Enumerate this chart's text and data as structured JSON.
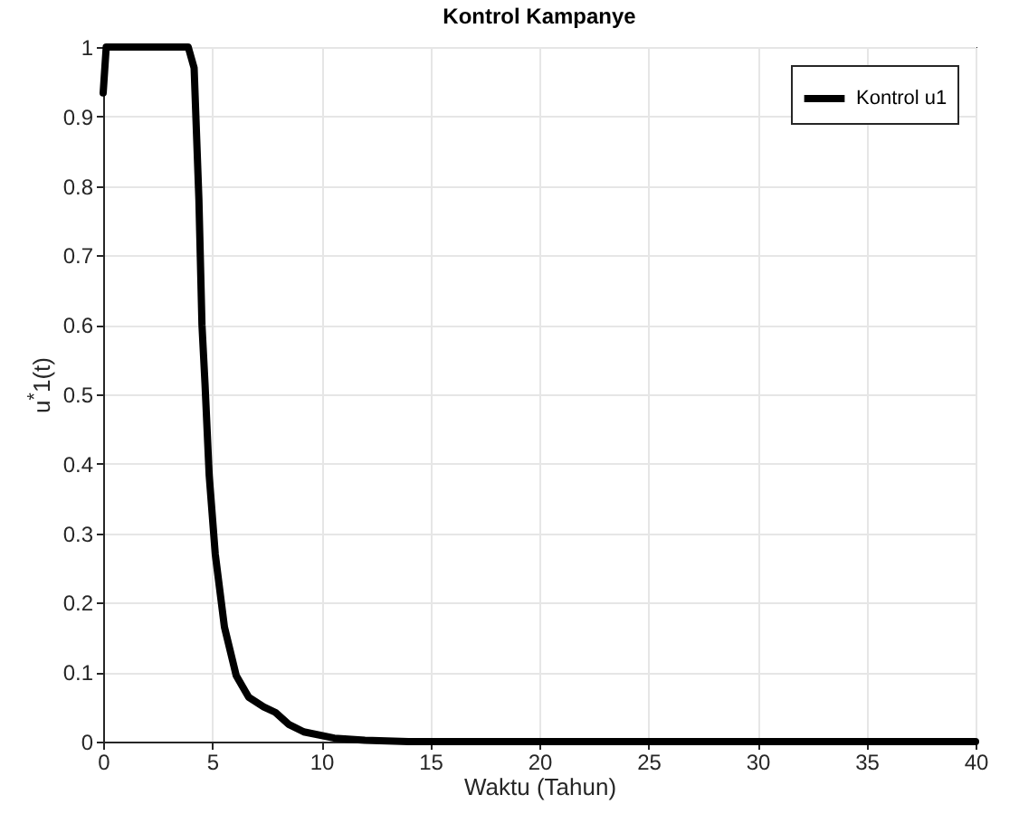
{
  "chart_data": {
    "type": "line",
    "title": "Kontrol Kampanye",
    "xlabel": "Waktu (Tahun)",
    "ylabel": "u$^{*}$1(t)",
    "xlim": [
      0,
      40
    ],
    "xticks": [
      0,
      5,
      10,
      15,
      20,
      25,
      30,
      35,
      40
    ],
    "ylim": [
      0,
      1
    ],
    "yticks": [
      0,
      0.1,
      0.2,
      0.3,
      0.4,
      0.5,
      0.6,
      0.7,
      0.8,
      0.9,
      1
    ],
    "grid": true,
    "legend": "top right",
    "line_style": "solid",
    "marker": "none",
    "series": [
      {
        "name": "Kontrol u1",
        "color": "#000000",
        "x": [
          0,
          0.14,
          3.9,
          4.17,
          4.39,
          4.53,
          4.67,
          4.86,
          5.14,
          5.56,
          6.1,
          6.67,
          7.36,
          7.9,
          8.5,
          9.2,
          10.6,
          12,
          14,
          20,
          30,
          40
        ],
        "values": [
          0.934,
          1,
          1,
          0.97,
          0.78,
          0.6,
          0.515,
          0.384,
          0.27,
          0.165,
          0.095,
          0.064,
          0.05,
          0.042,
          0.025,
          0.014,
          0.005,
          0.002,
          0,
          0,
          0,
          0
        ]
      }
    ]
  }
}
